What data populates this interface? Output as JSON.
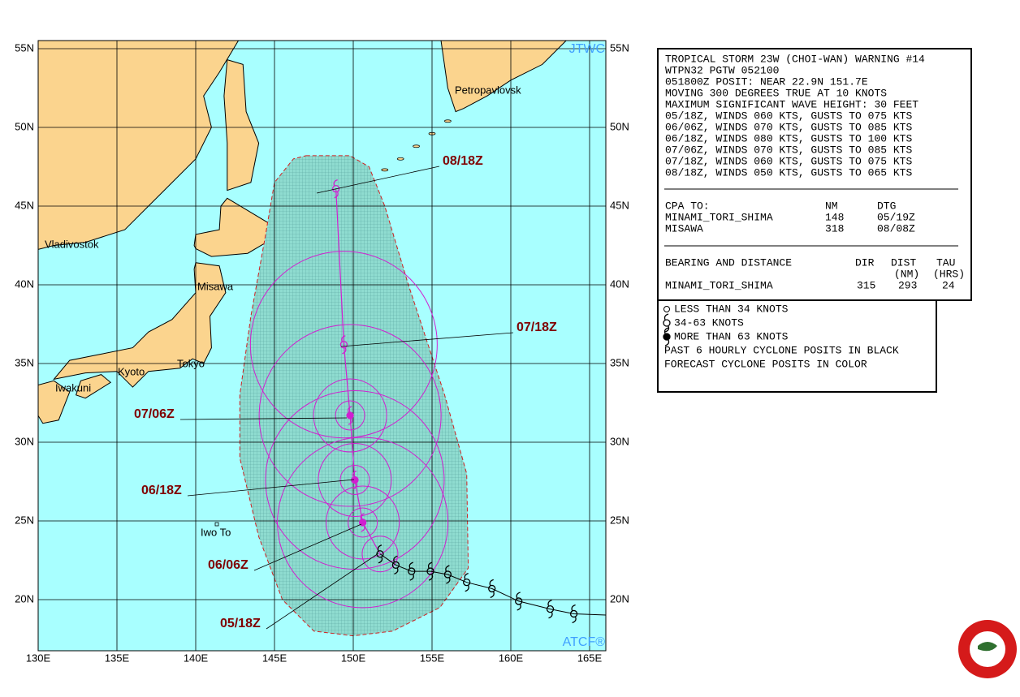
{
  "map": {
    "lat_labels": [
      "55N",
      "50N",
      "45N",
      "40N",
      "35N",
      "30N",
      "25N",
      "20N"
    ],
    "lon_labels": [
      "130E",
      "135E",
      "140E",
      "145E",
      "150E",
      "155E",
      "160E",
      "165E"
    ],
    "cities": [
      "Petropavlovsk",
      "Vladivostok",
      "Misawa",
      "Tokyo",
      "Kyoto",
      "Iwakuni",
      "Iwo To"
    ],
    "agency": "JTWC",
    "system": "ATCF®",
    "forecast_times": [
      "08/18Z",
      "07/18Z",
      "07/06Z",
      "06/18Z",
      "06/06Z",
      "05/18Z"
    ]
  },
  "warning": {
    "lines": [
      "TROPICAL STORM 23W (CHOI-WAN) WARNING #14",
      "WTPN32 PGTW 052100",
      "051800Z POSIT: NEAR 22.9N 151.7E",
      "MOVING 300 DEGREES TRUE AT 10 KNOTS",
      "MAXIMUM SIGNIFICANT WAVE HEIGHT: 30 FEET",
      "05/18Z, WINDS 060 KTS, GUSTS TO 075 KTS",
      "06/06Z, WINDS 070 KTS, GUSTS TO 085 KTS",
      "06/18Z, WINDS 080 KTS, GUSTS TO 100 KTS",
      "07/06Z, WINDS 070 KTS, GUSTS TO 085 KTS",
      "07/18Z, WINDS 060 KTS, GUSTS TO 075 KTS",
      "08/18Z, WINDS 050 KTS, GUSTS TO 065 KTS"
    ],
    "cpa": {
      "header": [
        "CPA TO:",
        "NM",
        "DTG"
      ],
      "rows": [
        [
          "MINAMI_TORI_SHIMA",
          "148",
          "05/19Z"
        ],
        [
          "MISAWA",
          "318",
          "08/08Z"
        ]
      ]
    },
    "bearing": {
      "header": [
        "BEARING AND DISTANCE",
        "DIR",
        "DIST",
        "TAU"
      ],
      "units": [
        "(NM)",
        "(HRS)"
      ],
      "rows": [
        [
          "MINAMI_TORI_SHIMA",
          "315",
          "293",
          "24"
        ]
      ]
    }
  },
  "legend": [
    "LESS THAN 34 KNOTS",
    "34-63 KNOTS",
    "MORE THAN 63 KNOTS",
    "PAST 6 HOURLY CYCLONE POSITS IN BLACK",
    "FORECAST CYCLONE POSITS IN COLOR"
  ]
}
